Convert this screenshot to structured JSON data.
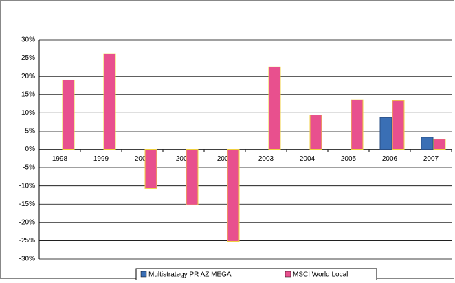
{
  "chart_data": {
    "type": "bar",
    "categories": [
      "1998",
      "1999",
      "2000",
      "2001",
      "2002",
      "2003",
      "2004",
      "2005",
      "2006",
      "2007"
    ],
    "series": [
      {
        "name": "Multistrategy PR AZ MEGA",
        "color": "#3a6fb5",
        "values": [
          null,
          null,
          null,
          null,
          null,
          null,
          null,
          null,
          8.7,
          3.3
        ]
      },
      {
        "name": "MSCI World Local",
        "color": "#e8508e",
        "values": [
          19,
          26.2,
          -10.7,
          -15.2,
          -25.2,
          22.6,
          9.4,
          13.6,
          13.4,
          2.8
        ]
      }
    ],
    "ylim": [
      -30,
      30
    ],
    "yticks": [
      {
        "value": -30,
        "label": "-30%"
      },
      {
        "value": -25,
        "label": "-25%"
      },
      {
        "value": -20,
        "label": "-20%"
      },
      {
        "value": -15,
        "label": "-15%"
      },
      {
        "value": -10,
        "label": "-10%"
      },
      {
        "value": -5,
        "label": "-5%"
      },
      {
        "value": 0,
        "label": "0%"
      },
      {
        "value": 5,
        "label": "5%"
      },
      {
        "value": 10,
        "label": "10%"
      },
      {
        "value": 15,
        "label": "15%"
      },
      {
        "value": 20,
        "label": "20%"
      },
      {
        "value": 25,
        "label": "25%"
      },
      {
        "value": 30,
        "label": "30%"
      }
    ],
    "grid": true,
    "legend": "bottom"
  }
}
